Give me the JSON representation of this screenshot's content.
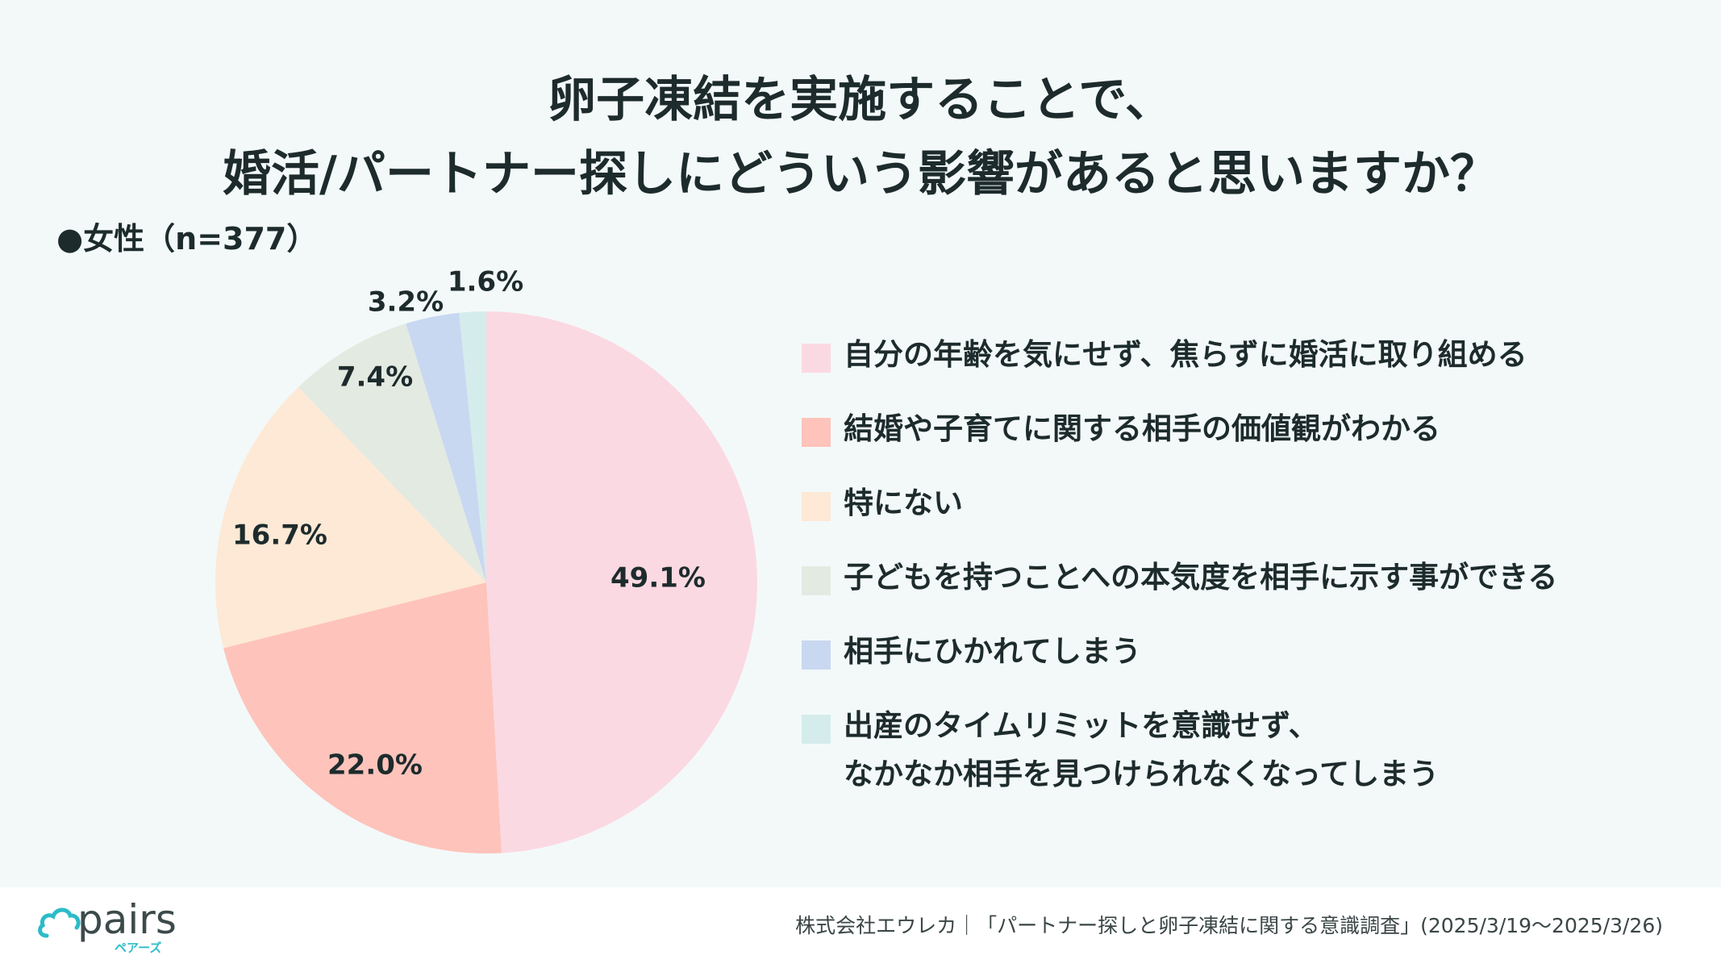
{
  "title_lines": [
    "卵子凍結を実施することで、",
    "婚活/パートナー探しにどういう影響があると思いますか？"
  ],
  "subgroup_label": "●女性（n=377）",
  "chart_data": {
    "type": "pie",
    "title": "卵子凍結を実施することで、婚活/パートナー探しにどういう影響があると思いますか？",
    "start_angle_deg": 0,
    "direction": "clockwise",
    "legend_position": "right",
    "slices": [
      {
        "label": "自分の年齢を気にせず、焦らずに婚活に取り組める",
        "value": 49.1,
        "display": "49.1%",
        "color": "#fbd9e2"
      },
      {
        "label": "結婚や子育てに関する相手の価値観がわかる",
        "value": 22.0,
        "display": "22.0%",
        "color": "#fec3bb"
      },
      {
        "label": "特にない",
        "value": 16.7,
        "display": "16.7%",
        "color": "#fde9d6"
      },
      {
        "label": "子どもを持つことへの本気度を相手に示す事ができる",
        "value": 7.4,
        "display": "7.4%",
        "color": "#e3eae2"
      },
      {
        "label": "相手にひかれてしまう",
        "value": 3.2,
        "display": "3.2%",
        "color": "#c9d8f1"
      },
      {
        "label": "出産のタイムリミットを意識せず、\nなかなか相手を見つけられなくなってしまう",
        "value": 1.6,
        "display": "1.6%",
        "color": "#d5ecec"
      }
    ]
  },
  "footer": {
    "logo_text": "pairs",
    "logo_sub": "ペアーズ",
    "source": "株式会社エウレカ｜「パートナー探しと卵子凍結に関する意識調査」(2025/3/19〜2025/3/26)"
  }
}
